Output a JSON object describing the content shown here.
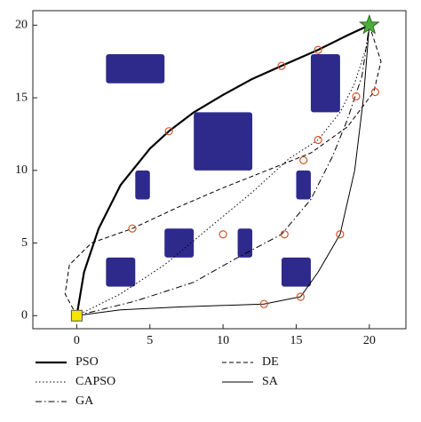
{
  "chart_data": {
    "type": "line",
    "xlim": [
      -3,
      22.5
    ],
    "ylim": [
      -0.9,
      21
    ],
    "xticks": [
      0,
      5,
      10,
      15,
      20
    ],
    "yticks": [
      0,
      5,
      10,
      15,
      20
    ],
    "obstacle_color": "#2e2a8c",
    "obstacles": [
      [
        2,
        16,
        6,
        18
      ],
      [
        16,
        14,
        18,
        18
      ],
      [
        8,
        10,
        12,
        14
      ],
      [
        4,
        8,
        5,
        10
      ],
      [
        15,
        8,
        16,
        10
      ],
      [
        6,
        4,
        8,
        6
      ],
      [
        11,
        4,
        12,
        6
      ],
      [
        2,
        2,
        4,
        4
      ],
      [
        14,
        2,
        16,
        4
      ]
    ],
    "waypoint_color": "#d2552a",
    "waypoints": {
      "x": [
        16.5,
        14,
        6.3,
        19.1,
        20.4,
        16.5,
        15.5,
        3.8,
        10,
        14.2,
        18,
        12.8,
        15.3
      ],
      "y": [
        18.3,
        17.2,
        12.7,
        15.1,
        15.4,
        12.1,
        10.7,
        6,
        5.6,
        5.6,
        5.6,
        0.8,
        1.3
      ]
    },
    "start": [
      0,
      0
    ],
    "start_color": "#f5e400",
    "goal": [
      20,
      20
    ],
    "goal_color": "#4caf3a",
    "series": [
      {
        "name": "PSO",
        "color": "#000000",
        "width": 2.2,
        "dash": "none",
        "x": [
          0,
          0.5,
          1.5,
          3,
          5,
          6.3,
          8,
          10,
          12,
          14,
          16.5,
          18.5,
          20
        ],
        "y": [
          0,
          3,
          6,
          9,
          11.5,
          12.7,
          14,
          15.2,
          16.3,
          17.2,
          18.3,
          19.3,
          20
        ]
      },
      {
        "name": "CAPSO",
        "color": "#000000",
        "width": 1,
        "dash": "1.5,2.5",
        "x": [
          0,
          3,
          6,
          9,
          12,
          14.5,
          16.5,
          18,
          19,
          19.8,
          20
        ],
        "y": [
          0,
          1.5,
          3.5,
          6,
          8.5,
          10.8,
          12.1,
          14,
          16,
          18.5,
          20
        ]
      },
      {
        "name": "GA",
        "color": "#000000",
        "width": 1,
        "dash": "7,3,1.5,3",
        "x": [
          0,
          4,
          8,
          11,
          14,
          16,
          17.5,
          18.5,
          19.5,
          20
        ],
        "y": [
          0,
          1,
          2.3,
          4,
          5.6,
          8,
          11,
          13.5,
          16.5,
          20
        ]
      },
      {
        "name": "DE",
        "color": "#000000",
        "width": 1,
        "dash": "5,3",
        "x": [
          0,
          -0.8,
          -0.5,
          1,
          3.8,
          7,
          10,
          13,
          16,
          18.5,
          20.3,
          20.8,
          20
        ],
        "y": [
          0,
          1.5,
          3.5,
          5,
          6,
          7.5,
          8.8,
          10,
          11.2,
          13,
          15.4,
          17.5,
          20
        ]
      },
      {
        "name": "SA",
        "color": "#000000",
        "width": 1,
        "dash": "none",
        "x": [
          0,
          3,
          7,
          12.8,
          15.3,
          16.5,
          18,
          19,
          19.6,
          20
        ],
        "y": [
          0,
          0.4,
          0.6,
          0.8,
          1.3,
          3,
          5.6,
          10,
          15,
          20
        ]
      }
    ]
  }
}
